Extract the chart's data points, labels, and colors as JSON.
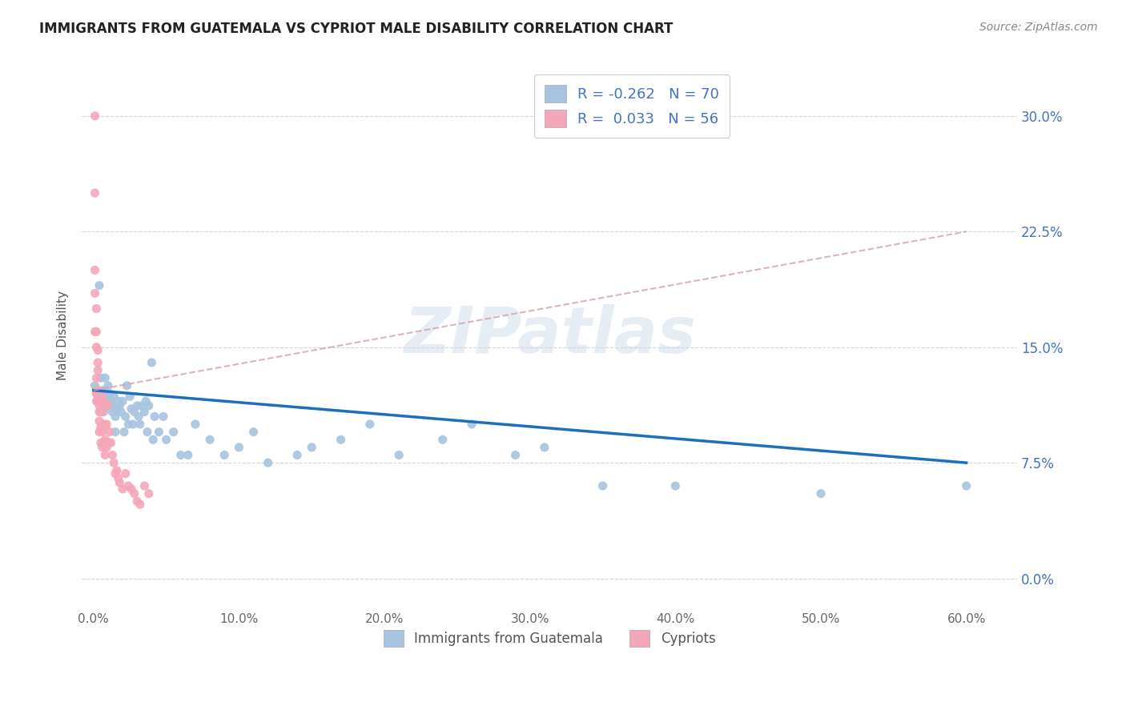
{
  "title": "IMMIGRANTS FROM GUATEMALA VS CYPRIOT MALE DISABILITY CORRELATION CHART",
  "source": "Source: ZipAtlas.com",
  "xlabel_ticks": [
    "0.0%",
    "10.0%",
    "20.0%",
    "30.0%",
    "40.0%",
    "50.0%",
    "60.0%"
  ],
  "xlabel_vals": [
    0.0,
    0.1,
    0.2,
    0.3,
    0.4,
    0.5,
    0.6
  ],
  "ylabel_ticks": [
    "0.0%",
    "7.5%",
    "15.0%",
    "22.5%",
    "30.0%"
  ],
  "ylabel_vals": [
    0.0,
    0.075,
    0.15,
    0.225,
    0.3
  ],
  "xlim": [
    -0.008,
    0.635
  ],
  "ylim": [
    -0.02,
    0.335
  ],
  "blue_R": "-0.262",
  "blue_N": "70",
  "pink_R": "0.033",
  "pink_N": "56",
  "blue_color": "#a8c4e0",
  "pink_color": "#f4a7b9",
  "blue_line_color": "#1a6fbe",
  "pink_line_color": "#d4a0b0",
  "watermark": "ZIPatlas",
  "legend_label_blue": "Immigrants from Guatemala",
  "legend_label_pink": "Cypriots",
  "blue_scatter_x": [
    0.001,
    0.002,
    0.003,
    0.004,
    0.005,
    0.005,
    0.006,
    0.007,
    0.007,
    0.008,
    0.008,
    0.009,
    0.01,
    0.01,
    0.011,
    0.012,
    0.013,
    0.013,
    0.014,
    0.015,
    0.015,
    0.016,
    0.017,
    0.018,
    0.019,
    0.02,
    0.021,
    0.022,
    0.023,
    0.024,
    0.025,
    0.026,
    0.027,
    0.028,
    0.03,
    0.031,
    0.032,
    0.033,
    0.035,
    0.036,
    0.037,
    0.038,
    0.04,
    0.041,
    0.042,
    0.045,
    0.048,
    0.05,
    0.055,
    0.06,
    0.065,
    0.07,
    0.08,
    0.09,
    0.1,
    0.11,
    0.12,
    0.14,
    0.15,
    0.17,
    0.19,
    0.21,
    0.24,
    0.26,
    0.29,
    0.31,
    0.35,
    0.4,
    0.5,
    0.6
  ],
  "blue_scatter_y": [
    0.125,
    0.12,
    0.118,
    0.19,
    0.13,
    0.118,
    0.122,
    0.115,
    0.108,
    0.112,
    0.13,
    0.118,
    0.125,
    0.112,
    0.12,
    0.115,
    0.108,
    0.112,
    0.118,
    0.105,
    0.095,
    0.11,
    0.115,
    0.112,
    0.108,
    0.115,
    0.095,
    0.105,
    0.125,
    0.1,
    0.118,
    0.11,
    0.1,
    0.108,
    0.112,
    0.105,
    0.1,
    0.112,
    0.108,
    0.115,
    0.095,
    0.112,
    0.14,
    0.09,
    0.105,
    0.095,
    0.105,
    0.09,
    0.095,
    0.08,
    0.08,
    0.1,
    0.09,
    0.08,
    0.085,
    0.095,
    0.075,
    0.08,
    0.085,
    0.09,
    0.1,
    0.08,
    0.09,
    0.1,
    0.08,
    0.085,
    0.06,
    0.06,
    0.055,
    0.06
  ],
  "pink_scatter_x": [
    0.001,
    0.001,
    0.001,
    0.001,
    0.001,
    0.002,
    0.002,
    0.002,
    0.002,
    0.002,
    0.002,
    0.003,
    0.003,
    0.003,
    0.003,
    0.003,
    0.004,
    0.004,
    0.004,
    0.004,
    0.004,
    0.005,
    0.005,
    0.005,
    0.005,
    0.006,
    0.006,
    0.006,
    0.006,
    0.007,
    0.007,
    0.007,
    0.008,
    0.008,
    0.008,
    0.009,
    0.009,
    0.01,
    0.01,
    0.011,
    0.012,
    0.013,
    0.014,
    0.015,
    0.016,
    0.017,
    0.018,
    0.02,
    0.022,
    0.024,
    0.026,
    0.028,
    0.03,
    0.032,
    0.035,
    0.038
  ],
  "pink_scatter_y": [
    0.3,
    0.25,
    0.2,
    0.185,
    0.16,
    0.175,
    0.16,
    0.15,
    0.13,
    0.12,
    0.115,
    0.148,
    0.14,
    0.135,
    0.122,
    0.115,
    0.118,
    0.112,
    0.108,
    0.102,
    0.095,
    0.115,
    0.108,
    0.098,
    0.088,
    0.118,
    0.108,
    0.095,
    0.085,
    0.115,
    0.1,
    0.088,
    0.098,
    0.09,
    0.08,
    0.1,
    0.085,
    0.112,
    0.088,
    0.095,
    0.088,
    0.08,
    0.075,
    0.068,
    0.07,
    0.065,
    0.062,
    0.058,
    0.068,
    0.06,
    0.058,
    0.055,
    0.05,
    0.048,
    0.06,
    0.055
  ],
  "blue_line_x0": 0.0,
  "blue_line_y0": 0.122,
  "blue_line_x1": 0.6,
  "blue_line_y1": 0.075,
  "pink_line_x0": 0.0,
  "pink_line_y0": 0.122,
  "pink_line_x1": 0.6,
  "pink_line_y1": 0.225
}
